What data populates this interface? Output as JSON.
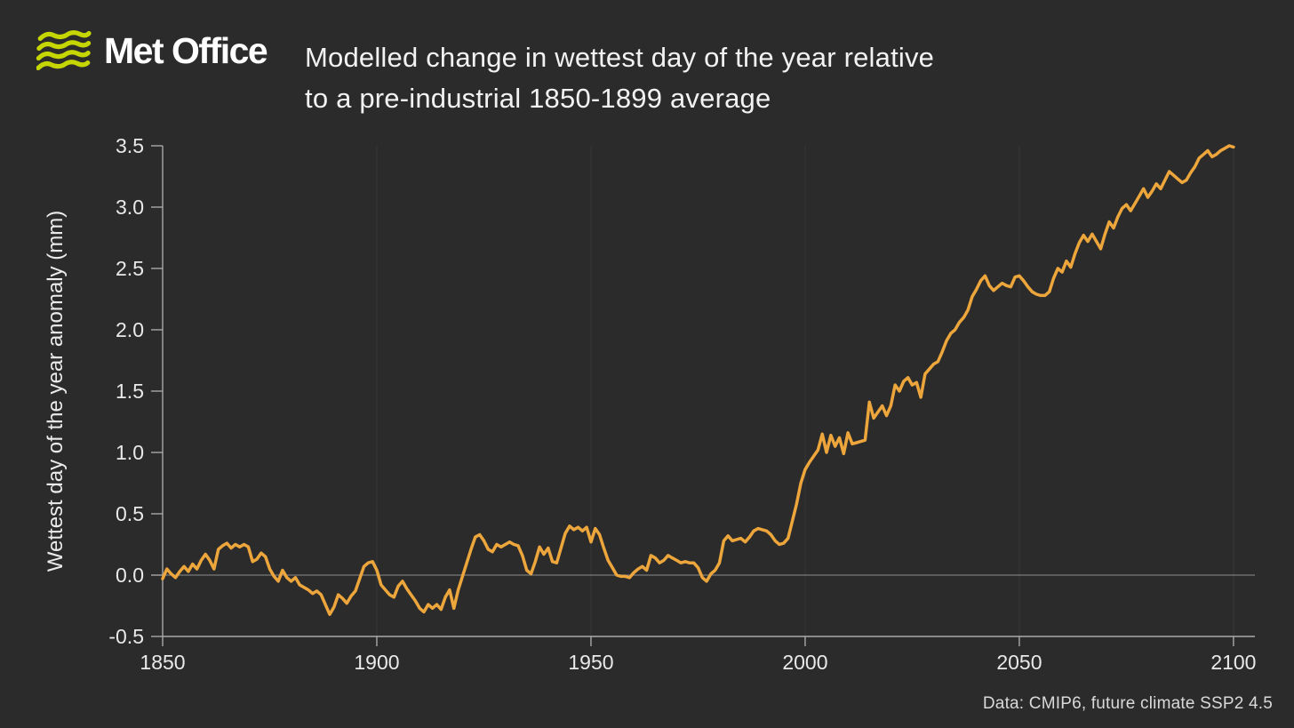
{
  "brand": {
    "name": "Met Office",
    "logo_color": "#c6d602"
  },
  "title": {
    "line1": "Modelled change in wettest day of the year relative",
    "line2": "to a pre-industrial 1850-1899 average"
  },
  "footer": {
    "source": "Data: CMIP6, future climate SSP2 4.5"
  },
  "chart_data": {
    "type": "line",
    "title": "Modelled change in wettest day of the year relative to a pre-industrial 1850-1899 average",
    "xlabel": "",
    "ylabel": "Wettest day of the year anomaly (mm)",
    "xlim": [
      1850,
      2105
    ],
    "ylim": [
      -0.5,
      3.5
    ],
    "x_ticks": [
      1850,
      1900,
      1950,
      2000,
      2050,
      2100
    ],
    "y_ticks": [
      3.5,
      3.0,
      2.5,
      2.0,
      1.5,
      1.0,
      0.5,
      0.0,
      -0.5
    ],
    "grid": "horizontal line at 0.0; very faint vertical lines at x ticks",
    "legend": "none",
    "line_color": "#eda63c",
    "axis_color": "#a9a9a9",
    "background_color": "#2b2b2b",
    "series": [
      {
        "name": "Wettest day of the year anomaly (mm), CMIP6 SSP2 4.5",
        "x_start": 1850,
        "x_step": 1,
        "values": [
          -0.03,
          0.05,
          0.01,
          -0.02,
          0.03,
          0.07,
          0.03,
          0.09,
          0.05,
          0.12,
          0.17,
          0.12,
          0.05,
          0.21,
          0.24,
          0.26,
          0.22,
          0.25,
          0.23,
          0.25,
          0.23,
          0.11,
          0.13,
          0.18,
          0.15,
          0.05,
          -0.01,
          -0.05,
          0.04,
          -0.02,
          -0.05,
          -0.02,
          -0.08,
          -0.1,
          -0.12,
          -0.15,
          -0.13,
          -0.16,
          -0.24,
          -0.32,
          -0.26,
          -0.16,
          -0.19,
          -0.23,
          -0.17,
          -0.13,
          -0.03,
          0.07,
          0.1,
          0.11,
          0.04,
          -0.08,
          -0.12,
          -0.16,
          -0.18,
          -0.09,
          -0.05,
          -0.11,
          -0.16,
          -0.21,
          -0.27,
          -0.3,
          -0.24,
          -0.27,
          -0.24,
          -0.28,
          -0.18,
          -0.12,
          -0.27,
          -0.12,
          -0.01,
          0.1,
          0.21,
          0.31,
          0.33,
          0.28,
          0.21,
          0.19,
          0.25,
          0.23,
          0.25,
          0.27,
          0.25,
          0.24,
          0.16,
          0.04,
          0.01,
          0.11,
          0.23,
          0.17,
          0.22,
          0.11,
          0.1,
          0.22,
          0.34,
          0.4,
          0.37,
          0.39,
          0.36,
          0.39,
          0.27,
          0.38,
          0.33,
          0.22,
          0.12,
          0.06,
          0.0,
          -0.01,
          -0.01,
          -0.02,
          0.02,
          0.05,
          0.07,
          0.04,
          0.16,
          0.14,
          0.1,
          0.12,
          0.16,
          0.14,
          0.12,
          0.1,
          0.11,
          0.1,
          0.1,
          0.06,
          -0.02,
          -0.05,
          0.01,
          0.04,
          0.1,
          0.28,
          0.32,
          0.28,
          0.29,
          0.3,
          0.27,
          0.31,
          0.36,
          0.38,
          0.37,
          0.36,
          0.33,
          0.28,
          0.25,
          0.26,
          0.3,
          0.44,
          0.58,
          0.75,
          0.86,
          0.92,
          0.97,
          1.02,
          1.15,
          1.0,
          1.14,
          1.05,
          1.12,
          0.99,
          1.16,
          1.07,
          1.08,
          1.09,
          1.1,
          1.41,
          1.28,
          1.33,
          1.38,
          1.3,
          1.38,
          1.55,
          1.5,
          1.58,
          1.61,
          1.55,
          1.57,
          1.45,
          1.64,
          1.68,
          1.72,
          1.74,
          1.82,
          1.91,
          1.97,
          2.0,
          2.06,
          2.1,
          2.16,
          2.27,
          2.33,
          2.4,
          2.44,
          2.36,
          2.32,
          2.35,
          2.38,
          2.36,
          2.35,
          2.43,
          2.44,
          2.4,
          2.35,
          2.31,
          2.29,
          2.28,
          2.28,
          2.31,
          2.42,
          2.5,
          2.47,
          2.56,
          2.51,
          2.62,
          2.71,
          2.77,
          2.72,
          2.78,
          2.72,
          2.66,
          2.78,
          2.88,
          2.83,
          2.92,
          2.99,
          3.02,
          2.97,
          3.03,
          3.09,
          3.15,
          3.08,
          3.13,
          3.19,
          3.15,
          3.22,
          3.29,
          3.26,
          3.23,
          3.2,
          3.22,
          3.28,
          3.33,
          3.4,
          3.43,
          3.46,
          3.41,
          3.43,
          3.46,
          3.48,
          3.5,
          3.49
        ]
      }
    ]
  }
}
